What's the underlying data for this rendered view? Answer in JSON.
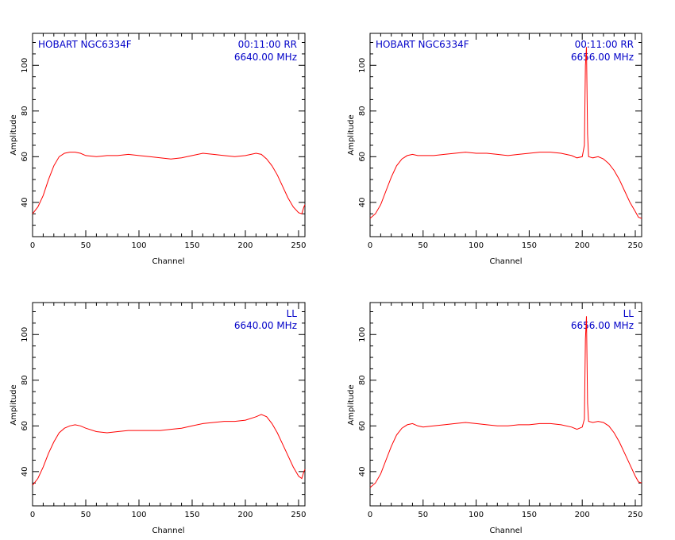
{
  "chart_data": [
    {
      "type": "line",
      "xlabel": "Channel",
      "ylabel": "Amplitude",
      "xlim": [
        0,
        256
      ],
      "ylim": [
        25,
        114
      ],
      "xticks": [
        0,
        50,
        100,
        150,
        200,
        250
      ],
      "yticks": [
        40,
        60,
        80,
        100
      ],
      "annotation_left": "HOBART NGC6334F",
      "annotation_right_1": "00:11:00  RR",
      "annotation_right_2": "6640.00  MHz",
      "series": [
        {
          "x": [
            0,
            5,
            10,
            15,
            20,
            25,
            30,
            35,
            40,
            45,
            50,
            60,
            70,
            80,
            90,
            100,
            110,
            120,
            130,
            140,
            150,
            160,
            170,
            180,
            190,
            200,
            210,
            215,
            220,
            225,
            230,
            235,
            240,
            245,
            250,
            253,
            255,
            256
          ],
          "y": [
            35,
            38,
            43,
            50,
            56,
            60,
            61.5,
            62,
            62,
            61.5,
            60.5,
            60,
            60.5,
            60.5,
            61,
            60.5,
            60,
            59.5,
            59,
            59.5,
            60.5,
            61.5,
            61,
            60.5,
            60,
            60.5,
            61.5,
            61,
            59,
            56,
            52,
            47,
            42,
            38,
            35.5,
            35,
            38,
            39
          ]
        }
      ]
    },
    {
      "type": "line",
      "xlabel": "Channel",
      "ylabel": "Amplitude",
      "xlim": [
        0,
        256
      ],
      "ylim": [
        25,
        114
      ],
      "xticks": [
        0,
        50,
        100,
        150,
        200,
        250
      ],
      "yticks": [
        40,
        60,
        80,
        100
      ],
      "annotation_left": "HOBART NGC6334F",
      "annotation_right_1": "00:11:00  RR",
      "annotation_right_2": "6656.00  MHz",
      "series": [
        {
          "x": [
            0,
            5,
            10,
            15,
            20,
            25,
            30,
            35,
            40,
            45,
            50,
            60,
            70,
            80,
            90,
            100,
            110,
            120,
            130,
            140,
            150,
            160,
            170,
            180,
            190,
            195,
            200,
            202,
            203,
            204,
            205,
            206,
            210,
            215,
            220,
            225,
            230,
            235,
            240,
            245,
            250,
            253,
            256
          ],
          "y": [
            33,
            35,
            39,
            45,
            51,
            56,
            59,
            60.5,
            61,
            60.5,
            60.5,
            60.5,
            61,
            61.5,
            62,
            61.5,
            61.5,
            61,
            60.5,
            61,
            61.5,
            62,
            62,
            61.5,
            60.5,
            59.5,
            60,
            65,
            100,
            108,
            70,
            60,
            59.5,
            60,
            59,
            57,
            54,
            50,
            45,
            40,
            36,
            33.5,
            33
          ]
        }
      ]
    },
    {
      "type": "line",
      "xlabel": "Channel",
      "ylabel": "Amplitude",
      "xlim": [
        0,
        256
      ],
      "ylim": [
        25,
        114
      ],
      "xticks": [
        0,
        50,
        100,
        150,
        200,
        250
      ],
      "yticks": [
        40,
        60,
        80,
        100
      ],
      "annotation_left": "",
      "annotation_right_1": "LL",
      "annotation_right_2": "6640.00  MHz",
      "series": [
        {
          "x": [
            0,
            5,
            10,
            15,
            20,
            25,
            30,
            35,
            40,
            45,
            50,
            60,
            70,
            80,
            90,
            100,
            110,
            120,
            130,
            140,
            150,
            160,
            170,
            180,
            190,
            200,
            210,
            215,
            220,
            225,
            230,
            235,
            240,
            245,
            250,
            253,
            255,
            256
          ],
          "y": [
            34,
            37,
            42,
            48,
            53,
            57,
            59,
            60,
            60.5,
            60,
            59,
            57.5,
            57,
            57.5,
            58,
            58,
            58,
            58,
            58.5,
            59,
            60,
            61,
            61.5,
            62,
            62,
            62.5,
            64,
            65,
            64,
            61,
            57,
            52,
            47,
            42,
            38,
            37,
            40,
            41
          ]
        }
      ]
    },
    {
      "type": "line",
      "xlabel": "Channel",
      "ylabel": "Amplitude",
      "xlim": [
        0,
        256
      ],
      "ylim": [
        25,
        114
      ],
      "xticks": [
        0,
        50,
        100,
        150,
        200,
        250
      ],
      "yticks": [
        40,
        60,
        80,
        100
      ],
      "annotation_left": "",
      "annotation_right_1": "LL",
      "annotation_right_2": "6656.00  MHz",
      "series": [
        {
          "x": [
            0,
            5,
            10,
            15,
            20,
            25,
            30,
            35,
            40,
            45,
            50,
            60,
            70,
            80,
            90,
            100,
            110,
            120,
            130,
            140,
            150,
            160,
            170,
            180,
            190,
            195,
            200,
            202,
            203,
            204,
            205,
            206,
            210,
            215,
            220,
            225,
            230,
            235,
            240,
            245,
            250,
            253,
            256
          ],
          "y": [
            33,
            35,
            39,
            45,
            51,
            56,
            59,
            60.5,
            61,
            60,
            59.5,
            60,
            60.5,
            61,
            61.5,
            61,
            60.5,
            60,
            60,
            60.5,
            60.5,
            61,
            61,
            60.5,
            59.5,
            58.5,
            59.5,
            63,
            98,
            108,
            70,
            62,
            61.5,
            62,
            61.5,
            60,
            57,
            53,
            48,
            43,
            38,
            35.5,
            35
          ]
        }
      ]
    }
  ]
}
